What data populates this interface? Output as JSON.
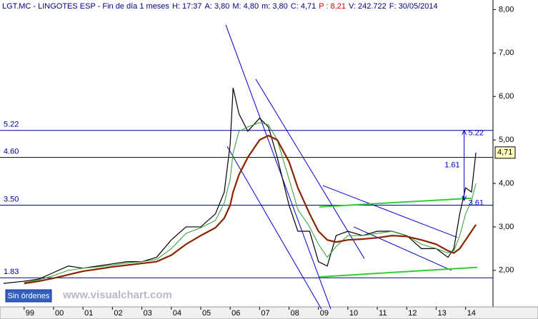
{
  "chart_data": {
    "type": "line",
    "title_parts": [
      {
        "text": "LGT.MC - LINGOTES ESP - Fin de día 1 meses",
        "color": "#000080"
      },
      {
        "text": "H: 17:37",
        "color": "#000080"
      },
      {
        "text": "A: 3,80",
        "color": "#000080"
      },
      {
        "text": "M: 4,80",
        "color": "#000080"
      },
      {
        "text": "m: 3,80",
        "color": "#000080"
      },
      {
        "text": "C: 4,71",
        "color": "#000080"
      },
      {
        "text": "P : 8,21",
        "color": "#e00000"
      },
      {
        "text": "V: 242.722",
        "color": "#000080"
      },
      {
        "text": "F: 30/05/2014",
        "color": "#000080"
      }
    ],
    "button": "Sin órdenes",
    "watermark": "www.visualchart.com",
    "x": [
      1998.3,
      1999.0,
      1999.5,
      2000.0,
      2000.5,
      2001.0,
      2001.5,
      2002.0,
      2002.5,
      2003.0,
      2003.5,
      2004.0,
      2004.5,
      2005.0,
      2005.5,
      2005.8,
      2006.0,
      2006.1,
      2006.3,
      2006.6,
      2007.0,
      2007.3,
      2007.6,
      2008.0,
      2008.3,
      2008.7,
      2009.0,
      2009.3,
      2009.6,
      2010.0,
      2010.5,
      2011.0,
      2011.5,
      2012.0,
      2012.5,
      2013.0,
      2013.4,
      2013.6,
      2013.8,
      2014.0,
      2014.2,
      2014.35
    ],
    "series": [
      {
        "color": "#000000",
        "width": 1.2,
        "values": [
          1.7,
          1.75,
          1.8,
          1.95,
          2.1,
          2.05,
          2.1,
          2.15,
          2.2,
          2.2,
          2.3,
          2.7,
          3.0,
          3.0,
          3.3,
          3.8,
          4.9,
          6.2,
          5.6,
          5.2,
          5.5,
          5.3,
          4.6,
          3.5,
          2.9,
          2.9,
          2.2,
          2.1,
          2.8,
          2.9,
          2.8,
          2.9,
          2.9,
          2.8,
          2.5,
          2.5,
          2.3,
          2.5,
          3.3,
          3.9,
          3.8,
          4.71
        ]
      },
      {
        "color": "#2e9e2e",
        "width": 1,
        "values": [
          null,
          1.72,
          1.78,
          1.88,
          2.0,
          2.05,
          2.08,
          2.12,
          2.17,
          2.2,
          2.25,
          2.5,
          2.85,
          2.98,
          3.15,
          3.55,
          4.1,
          4.7,
          5.2,
          5.3,
          5.4,
          5.35,
          5.0,
          4.1,
          3.4,
          3.0,
          2.6,
          2.3,
          2.55,
          2.8,
          2.8,
          2.85,
          2.9,
          2.8,
          2.6,
          2.5,
          2.4,
          2.45,
          2.8,
          3.3,
          3.6,
          4.0
        ]
      },
      {
        "color": "#8b2500",
        "width": 2.2,
        "values": [
          null,
          1.7,
          1.75,
          1.82,
          1.9,
          1.98,
          2.03,
          2.08,
          2.12,
          2.16,
          2.2,
          2.35,
          2.6,
          2.8,
          2.98,
          3.2,
          3.5,
          3.8,
          4.2,
          4.6,
          5.0,
          5.1,
          5.0,
          4.5,
          3.9,
          3.3,
          2.9,
          2.7,
          2.65,
          2.7,
          2.72,
          2.75,
          2.8,
          2.78,
          2.7,
          2.6,
          2.45,
          2.4,
          2.5,
          2.7,
          2.9,
          3.05
        ]
      }
    ],
    "levels": [
      {
        "value": 5.22,
        "label": "5.22"
      },
      {
        "value": 4.6,
        "label": "4.60"
      },
      {
        "value": 3.5,
        "label": "3.50"
      },
      {
        "value": 1.83,
        "label": "1.83"
      }
    ],
    "level_color": "#00008b",
    "trendlines": [
      {
        "color": "#0000cd",
        "x": [
          2005.85,
          2009.42
        ],
        "y": [
          7.65,
          1.11
        ]
      },
      {
        "color": "#0000cd",
        "x": [
          2005.9,
          2009.1
        ],
        "y": [
          4.85,
          1.11
        ]
      },
      {
        "color": "#0000cd",
        "x": [
          2006.87,
          2010.56
        ],
        "y": [
          6.4,
          2.27
        ]
      },
      {
        "color": "#0000cd",
        "x": [
          2009.15,
          2013.71
        ],
        "y": [
          3.95,
          2.76
        ]
      },
      {
        "color": "#0000cd",
        "x": [
          2010.2,
          2013.52
        ],
        "y": [
          3.0,
          2.0
        ]
      },
      {
        "color": "#33cc33",
        "x": [
          2009.03,
          2014.2
        ],
        "y": [
          3.46,
          3.66
        ]
      },
      {
        "color": "#33cc33",
        "x": [
          2009.03,
          2014.4
        ],
        "y": [
          1.85,
          2.07
        ]
      }
    ],
    "measure": {
      "x": 2013.95,
      "from": 3.61,
      "to": 5.22,
      "from_label": "3.61",
      "to_label": "5.22",
      "diff": 1.61,
      "color": "#0000cd"
    },
    "last_price": {
      "value": 4.71,
      "label": "4,71"
    },
    "xlim": [
      1998.18,
      2014.93
    ],
    "ylim": [
      1.16,
      8.22
    ],
    "xticks": [
      {
        "value": 1999,
        "label": "99"
      },
      {
        "value": 2000,
        "label": "00"
      },
      {
        "value": 2001,
        "label": "01"
      },
      {
        "value": 2002,
        "label": "02"
      },
      {
        "value": 2003,
        "label": "03"
      },
      {
        "value": 2004,
        "label": "04"
      },
      {
        "value": 2005,
        "label": "05"
      },
      {
        "value": 2006,
        "label": "06"
      },
      {
        "value": 2007,
        "label": "07"
      },
      {
        "value": 2008,
        "label": "08"
      },
      {
        "value": 2009,
        "label": "09"
      },
      {
        "value": 2010,
        "label": "10"
      },
      {
        "value": 2011,
        "label": "11"
      },
      {
        "value": 2012,
        "label": "12"
      },
      {
        "value": 2013,
        "label": "13"
      },
      {
        "value": 2014,
        "label": "14"
      }
    ],
    "yticks": [
      {
        "value": 2,
        "label": "2,00"
      },
      {
        "value": 3,
        "label": "3,00"
      },
      {
        "value": 4,
        "label": "4,00"
      },
      {
        "value": 5,
        "label": "5,00"
      },
      {
        "value": 6,
        "label": "6,00"
      },
      {
        "value": 7,
        "label": "7,00"
      },
      {
        "value": 8,
        "label": "8,00"
      }
    ]
  }
}
